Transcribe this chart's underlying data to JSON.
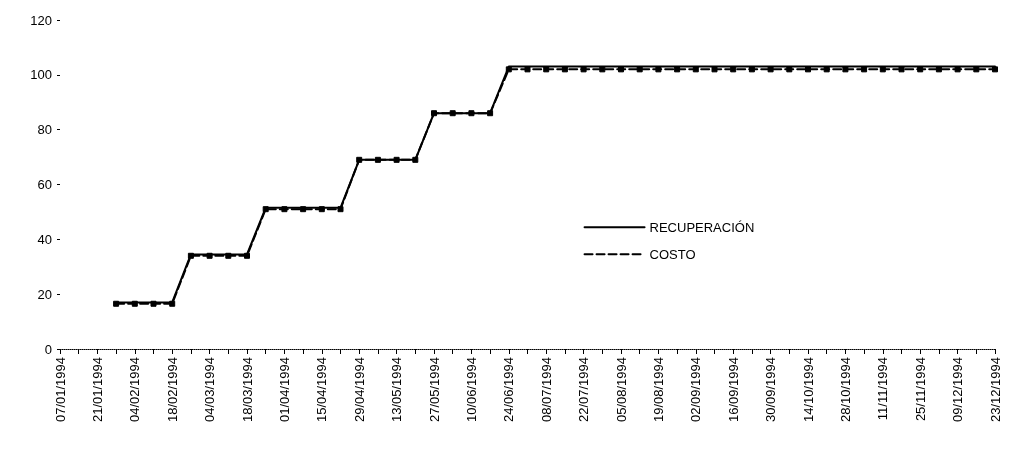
{
  "chart_data": {
    "type": "line",
    "categories": [
      "07/01/1994",
      null,
      "21/01/1994",
      null,
      "04/02/1994",
      null,
      "18/02/1994",
      null,
      "04/03/1994",
      null,
      "18/03/1994",
      null,
      "01/04/1994",
      null,
      "15/04/1994",
      null,
      "29/04/1994",
      null,
      "13/05/1994",
      null,
      "27/05/1994",
      null,
      "10/06/1994",
      null,
      "24/06/1994",
      null,
      "08/07/1994",
      null,
      "22/07/1994",
      null,
      "05/08/1994",
      null,
      "19/08/1994",
      null,
      "02/09/1994",
      null,
      "16/09/1994",
      null,
      "30/09/1994",
      null,
      "14/10/1994",
      null,
      "28/10/1994",
      null,
      "11/11/1994",
      null,
      "25/11/1994",
      null,
      "09/12/1994",
      null,
      "23/12/1994"
    ],
    "series": [
      {
        "name": "RECUPERACIÓN",
        "color": "#000000",
        "line_style": "solid",
        "marker": "none",
        "values": [
          null,
          null,
          null,
          17,
          17,
          17,
          17,
          34.5,
          34.5,
          34.5,
          34.5,
          51.5,
          51.5,
          51.5,
          51.5,
          51.5,
          69,
          69,
          69,
          69,
          86,
          86,
          86,
          86,
          103,
          103,
          103,
          103,
          103,
          103,
          103,
          103,
          103,
          103,
          103,
          103,
          103,
          103,
          103,
          103,
          103,
          103,
          103,
          103,
          103,
          103,
          103,
          103,
          103,
          103,
          103
        ]
      },
      {
        "name": "COSTO",
        "color": "#000000",
        "line_style": "dashed",
        "marker": "square",
        "values": [
          null,
          null,
          null,
          16.5,
          16.5,
          16.5,
          16.5,
          34,
          34,
          34,
          34,
          51,
          51,
          51,
          51,
          51,
          69,
          69,
          69,
          69,
          86,
          86,
          86,
          86,
          102,
          102,
          102,
          102,
          102,
          102,
          102,
          102,
          102,
          102,
          102,
          102,
          102,
          102,
          102,
          102,
          102,
          102,
          102,
          102,
          102,
          102,
          102,
          102,
          102,
          102,
          102
        ]
      }
    ],
    "ylim": [
      0,
      120
    ],
    "yticks": [
      0,
      20,
      40,
      60,
      80,
      100,
      120
    ],
    "grid": false,
    "legend": "center right"
  }
}
